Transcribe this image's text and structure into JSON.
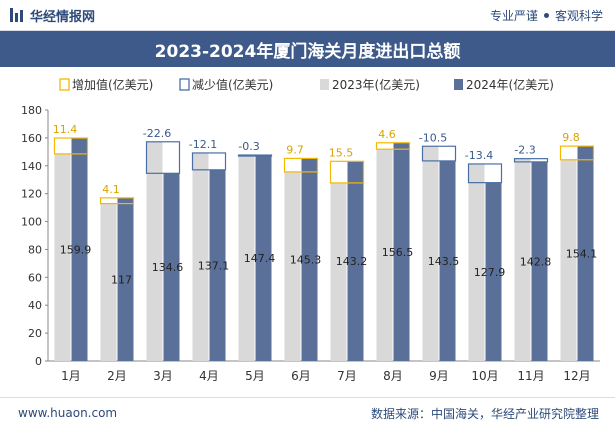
{
  "header": {
    "brand": "华经情报网",
    "tagline_left": "专业严谨",
    "tagline_right": "客观科学"
  },
  "footer": {
    "website": "www.huaon.com",
    "source": "数据来源：中国海关，华经产业研究院整理"
  },
  "colors": {
    "increase": "#f5b800",
    "decrease": "#4a6fa5",
    "y2023": "#d9d9d9",
    "y2024": "#5b7098",
    "title_bg": "#3d5a8a"
  },
  "chart_data": {
    "type": "bar",
    "title": "2023-2024年厦门海关月度进出口总额",
    "categories": [
      "1月",
      "2月",
      "3月",
      "4月",
      "5月",
      "6月",
      "7月",
      "8月",
      "9月",
      "10月",
      "11月",
      "12月"
    ],
    "series": [
      {
        "name": "增加值(亿美元)",
        "kind": "increase"
      },
      {
        "name": "减少值(亿美元)",
        "kind": "decrease"
      },
      {
        "name": "2023年(亿美元)",
        "values": [
          148.5,
          112.9,
          157.2,
          149.2,
          147.7,
          135.6,
          127.7,
          151.9,
          154.0,
          141.3,
          145.1,
          144.3
        ]
      },
      {
        "name": "2024年(亿美元)",
        "values": [
          159.9,
          117,
          134.6,
          137.1,
          147.4,
          145.3,
          143.2,
          156.5,
          143.5,
          127.9,
          142.8,
          154.1
        ]
      }
    ],
    "change_labels": [
      "11.4",
      "4.1",
      "-22.6",
      "-12.1",
      "-0.3",
      "9.7",
      "15.5",
      "4.6",
      "-10.5",
      "-13.4",
      "-2.3",
      "9.8"
    ],
    "value_labels": [
      "159.9",
      "117",
      "134.6",
      "137.1",
      "147.4",
      "145.3",
      "143.2",
      "156.5",
      "143.5",
      "127.9",
      "142.8",
      "154.1"
    ],
    "ylim": [
      0,
      180
    ],
    "yticks": [
      "0",
      "20",
      "40",
      "60",
      "80",
      "100",
      "120",
      "140",
      "160",
      "180"
    ],
    "legend_position": "top-left",
    "grid": false
  }
}
